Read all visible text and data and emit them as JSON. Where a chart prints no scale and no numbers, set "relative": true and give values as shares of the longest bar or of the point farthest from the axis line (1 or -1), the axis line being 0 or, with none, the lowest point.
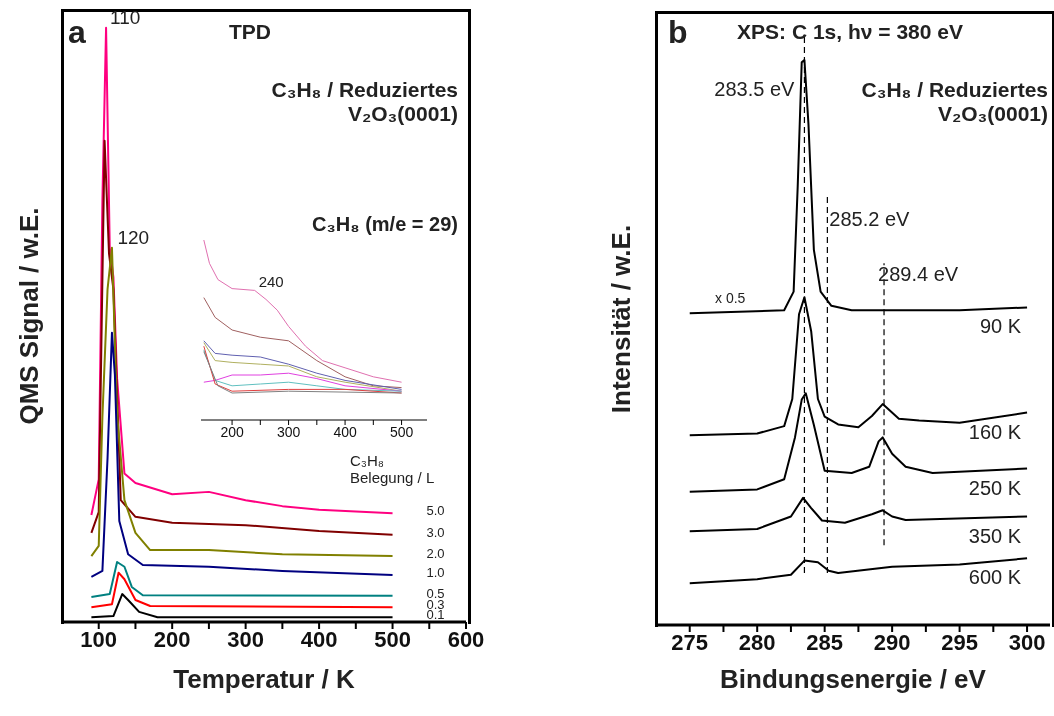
{
  "chart_data": [
    {
      "type": "line",
      "relative": true,
      "title": "TPD",
      "subtitle": "C₃H₈ / Reduziertes\nV₂O₃(0001)",
      "xlabel": "Temperatur / K",
      "ylabel": "QMS Signal / w.E.",
      "legend_title": "C₃H₈\nBelegung / L",
      "xlim": [
        50,
        600
      ],
      "xticks": [
        100,
        {
          "value": 150,
          "label": null
        },
        200,
        {
          "value": 250,
          "label": null
        },
        300,
        {
          "value": 350,
          "label": null
        },
        400,
        {
          "value": 450,
          "label": null
        },
        500,
        {
          "value": 550,
          "label": null
        },
        600
      ],
      "annotations": [
        "a",
        "C₃H₈ (m/e = 29)",
        {
          "text": "110",
          "x": 110,
          "y": 1.0
        },
        {
          "text": "120",
          "x": 120,
          "y": 0.63
        }
      ],
      "series": [
        {
          "name": "5.0",
          "color": "#ff0080",
          "x": [
            90,
            100,
            105,
            110,
            115,
            120,
            125,
            135,
            150,
            200,
            250,
            300,
            350,
            400,
            500
          ],
          "values": [
            0.18,
            0.24,
            0.71,
            1.0,
            0.63,
            0.58,
            0.41,
            0.25,
            0.234,
            0.215,
            0.219,
            0.205,
            0.195,
            0.189,
            0.183
          ]
        },
        {
          "name": "3.0",
          "color": "#800000",
          "x": [
            90,
            100,
            108,
            114,
            120,
            130,
            150,
            200,
            300,
            400,
            500
          ],
          "values": [
            0.15,
            0.185,
            0.81,
            0.62,
            0.56,
            0.205,
            0.177,
            0.167,
            0.163,
            0.153,
            0.147
          ]
        },
        {
          "name": "2.0",
          "color": "#808000",
          "x": [
            90,
            100,
            105,
            112,
            118,
            125,
            135,
            150,
            170,
            250,
            350,
            500
          ],
          "values": [
            0.111,
            0.128,
            0.345,
            0.56,
            0.63,
            0.35,
            0.205,
            0.15,
            0.121,
            0.121,
            0.114,
            0.111
          ]
        },
        {
          "name": "1.0",
          "color": "#000080",
          "x": [
            90,
            105,
            112,
            118,
            122,
            128,
            140,
            160,
            250,
            350,
            500
          ],
          "values": [
            0.076,
            0.086,
            0.276,
            0.487,
            0.416,
            0.17,
            0.114,
            0.096,
            0.093,
            0.086,
            0.079
          ]
        },
        {
          "name": "0.5",
          "color": "#008080",
          "x": [
            90,
            115,
            125,
            135,
            145,
            160,
            500
          ],
          "values": [
            0.042,
            0.047,
            0.101,
            0.093,
            0.059,
            0.045,
            0.044
          ]
        },
        {
          "name": "0.3",
          "color": "#ff0000",
          "x": [
            90,
            118,
            127,
            135,
            150,
            170,
            500
          ],
          "values": [
            0.025,
            0.03,
            0.083,
            0.072,
            0.037,
            0.027,
            0.025
          ]
        },
        {
          "name": "0.1",
          "color": "#000000",
          "x": [
            90,
            120,
            132,
            140,
            155,
            180,
            500
          ],
          "values": [
            0.008,
            0.01,
            0.047,
            0.037,
            0.017,
            0.008,
            0.008
          ]
        }
      ]
    },
    {
      "type": "line",
      "relative": true,
      "xlim": [
        145,
        545
      ],
      "xticks": [
        200,
        {
          "value": 250,
          "label": null
        },
        300,
        {
          "value": 350,
          "label": null
        },
        400,
        {
          "value": 450,
          "label": null
        },
        500
      ],
      "annotations": [
        {
          "text": "240",
          "x": 240,
          "y": 0.72
        }
      ],
      "series": [
        {
          "color": "#e070b0",
          "x": [
            150,
            160,
            175,
            200,
            240,
            260,
            280,
            300,
            330,
            360,
            400,
            450,
            500
          ],
          "values": [
            1.0,
            0.87,
            0.78,
            0.73,
            0.72,
            0.67,
            0.61,
            0.52,
            0.41,
            0.33,
            0.29,
            0.24,
            0.21
          ]
        },
        {
          "color": "#a06060",
          "x": [
            150,
            170,
            200,
            250,
            300,
            350,
            400,
            450,
            500
          ],
          "values": [
            0.68,
            0.57,
            0.5,
            0.46,
            0.44,
            0.33,
            0.24,
            0.19,
            0.18
          ]
        },
        {
          "color": "#6060b0",
          "x": [
            150,
            170,
            200,
            250,
            300,
            350,
            400,
            500
          ],
          "values": [
            0.44,
            0.37,
            0.36,
            0.35,
            0.31,
            0.26,
            0.22,
            0.17
          ]
        },
        {
          "color": "#b0b060",
          "x": [
            150,
            170,
            200,
            250,
            300,
            350,
            400,
            500
          ],
          "values": [
            0.43,
            0.33,
            0.32,
            0.31,
            0.3,
            0.24,
            0.21,
            0.16
          ]
        },
        {
          "color": "#e040e0",
          "x": [
            150,
            170,
            200,
            250,
            300,
            350,
            400,
            500
          ],
          "values": [
            0.21,
            0.22,
            0.25,
            0.25,
            0.26,
            0.23,
            0.19,
            0.16
          ]
        },
        {
          "color": "#60c0c0",
          "x": [
            150,
            170,
            200,
            250,
            300,
            350,
            400,
            500
          ],
          "values": [
            0.39,
            0.22,
            0.19,
            0.2,
            0.21,
            0.19,
            0.17,
            0.16
          ]
        },
        {
          "color": "#e04040",
          "x": [
            150,
            170,
            200,
            300,
            400,
            500
          ],
          "values": [
            0.41,
            0.2,
            0.16,
            0.17,
            0.17,
            0.15
          ]
        },
        {
          "color": "#808080",
          "x": [
            150,
            175,
            200,
            300,
            500
          ],
          "values": [
            0.38,
            0.19,
            0.15,
            0.16,
            0.15
          ]
        }
      ]
    },
    {
      "type": "line",
      "relative": true,
      "title": "XPS: C 1s, hν = 380 eV",
      "subtitle": "C₃H₈ / Reduziertes\nV₂O₃(0001)",
      "xlabel": "Bindungsenergie / eV",
      "ylabel": "Intensität / w.E.",
      "xlim": [
        272.5,
        301.7
      ],
      "xticks": [
        275,
        {
          "value": 277.5,
          "label": null
        },
        280,
        {
          "value": 282.5,
          "label": null
        },
        285,
        {
          "value": 287.5,
          "label": null
        },
        290,
        {
          "value": 292.5,
          "label": null
        },
        295,
        {
          "value": 297.5,
          "label": null
        },
        300
      ],
      "annotations": [
        "b",
        "x 0.5"
      ],
      "ref_lines": [
        {
          "axis": "x",
          "value": 283.5,
          "label": "283.5 eV",
          "line_style": "dashed",
          "color": "#000000"
        },
        {
          "axis": "x",
          "value": 285.2,
          "label": "285.2 eV",
          "line_style": "dashed",
          "color": "#000000"
        },
        {
          "axis": "x",
          "value": 289.4,
          "label": "289.4 eV",
          "line_style": "dashed",
          "color": "#000000"
        }
      ],
      "series": [
        {
          "name": "90 K",
          "color": "#000000",
          "x": [
            275,
            282,
            282.7,
            283,
            283.3,
            283.5,
            283.8,
            284.2,
            284.7,
            285.5,
            287,
            295,
            300
          ],
          "values": [
            0.552,
            0.557,
            0.59,
            0.775,
            0.996,
            1.0,
            0.886,
            0.664,
            0.59,
            0.565,
            0.557,
            0.557,
            0.562
          ]
        },
        {
          "name": "160 K",
          "color": "#000000",
          "x": [
            275,
            280,
            282,
            282.6,
            283.1,
            283.5,
            284,
            284.5,
            285,
            286,
            287.5,
            288.5,
            289.3,
            290.5,
            292,
            295,
            300
          ],
          "values": [
            0.336,
            0.339,
            0.352,
            0.4,
            0.55,
            0.58,
            0.52,
            0.4,
            0.369,
            0.355,
            0.35,
            0.37,
            0.391,
            0.365,
            0.362,
            0.358,
            0.376
          ]
        },
        {
          "name": "250 K",
          "color": "#000000",
          "x": [
            275,
            280,
            282,
            282.8,
            283.3,
            283.6,
            284.2,
            285,
            287,
            288.3,
            289,
            289.3,
            290,
            291,
            293,
            300
          ],
          "values": [
            0.236,
            0.24,
            0.258,
            0.332,
            0.399,
            0.41,
            0.354,
            0.273,
            0.269,
            0.28,
            0.325,
            0.332,
            0.303,
            0.28,
            0.269,
            0.277
          ]
        },
        {
          "name": "350 K",
          "color": "#000000",
          "x": [
            275,
            280,
            282.5,
            283.4,
            284,
            284.8,
            286.5,
            288.5,
            289.3,
            290,
            291,
            300
          ],
          "values": [
            0.166,
            0.17,
            0.192,
            0.225,
            0.207,
            0.185,
            0.181,
            0.196,
            0.203,
            0.192,
            0.186,
            0.192
          ]
        },
        {
          "name": "600 K",
          "color": "#000000",
          "x": [
            275,
            280,
            282.5,
            283.5,
            284.5,
            285.3,
            286,
            290,
            295,
            300
          ],
          "values": [
            0.074,
            0.081,
            0.089,
            0.114,
            0.111,
            0.096,
            0.092,
            0.103,
            0.107,
            0.118
          ]
        }
      ]
    }
  ]
}
